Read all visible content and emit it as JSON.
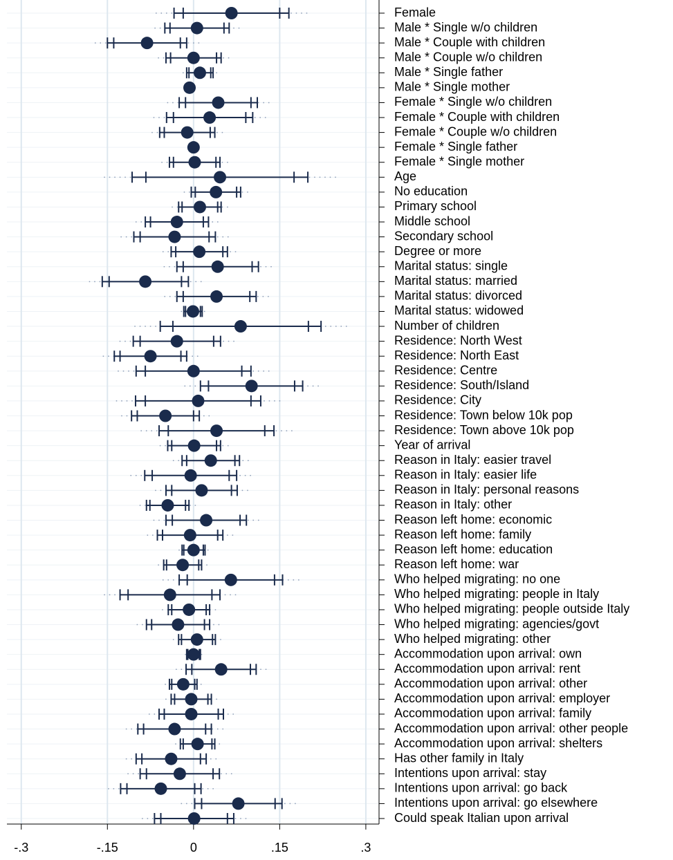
{
  "chart_data": {
    "type": "coefplot",
    "color": "#1a2b4c",
    "grid": true,
    "xlim": [
      -0.325,
      0.323
    ],
    "xticks": [
      {
        "value": -0.3,
        "label": "-.3"
      },
      {
        "value": -0.15,
        "label": "-.15"
      },
      0,
      {
        "value": 0.15,
        "label": ".15"
      },
      {
        "value": 0.3,
        "label": ".3"
      }
    ],
    "rows": [
      {
        "label": "Female",
        "estimate": 0.066,
        "ci90": [
          -0.018,
          0.15
        ],
        "ci95": [
          -0.034,
          0.166
        ],
        "ci99": [
          -0.066,
          0.198
        ]
      },
      {
        "label": "Male * Single w/o children",
        "estimate": 0.006,
        "ci90": [
          -0.041,
          0.053
        ],
        "ci95": [
          -0.05,
          0.062
        ],
        "ci99": [
          -0.068,
          0.08
        ]
      },
      {
        "label": "Male * Couple with children",
        "estimate": -0.081,
        "ci90": [
          -0.139,
          -0.023
        ],
        "ci95": [
          -0.15,
          -0.012
        ],
        "ci99": [
          -0.172,
          0.01
        ]
      },
      {
        "label": "Male * Couple w/o children",
        "estimate": 0,
        "ci90": [
          -0.04,
          0.04
        ],
        "ci95": [
          -0.048,
          0.048
        ],
        "ci99": [
          -0.062,
          0.062
        ]
      },
      {
        "label": "Male * Single father",
        "estimate": 0.011,
        "ci90": [
          -0.008,
          0.03
        ],
        "ci95": [
          -0.012,
          0.034
        ],
        "ci99": [
          -0.019,
          0.041
        ]
      },
      {
        "label": "Male * Single mother",
        "estimate": -0.007,
        "ci90": [
          -0.009,
          -0.005
        ],
        "ci95": [
          -0.01,
          -0.004
        ],
        "ci99": [
          -0.011,
          -0.003
        ]
      },
      {
        "label": "Female * Single w/o children",
        "estimate": 0.043,
        "ci90": [
          -0.014,
          0.1
        ],
        "ci95": [
          -0.025,
          0.111
        ],
        "ci99": [
          -0.046,
          0.132
        ]
      },
      {
        "label": "Female * Couple with children",
        "estimate": 0.028,
        "ci90": [
          -0.035,
          0.091
        ],
        "ci95": [
          -0.047,
          0.103
        ],
        "ci99": [
          -0.07,
          0.126
        ]
      },
      {
        "label": "Female * Couple w/o children",
        "estimate": -0.011,
        "ci90": [
          -0.051,
          0.029
        ],
        "ci95": [
          -0.059,
          0.037
        ],
        "ci99": [
          -0.073,
          0.051
        ]
      },
      {
        "label": "Female * Single father",
        "estimate": 0,
        "ci90": [
          -0.002,
          0.002
        ],
        "ci95": [
          -0.003,
          0.003
        ],
        "ci99": [
          -0.004,
          0.004
        ]
      },
      {
        "label": "Female * Single mother",
        "estimate": 0.002,
        "ci90": [
          -0.035,
          0.039
        ],
        "ci95": [
          -0.042,
          0.046
        ],
        "ci99": [
          -0.056,
          0.06
        ]
      },
      {
        "label": "Age",
        "estimate": 0.046,
        "ci90": [
          -0.083,
          0.175
        ],
        "ci95": [
          -0.107,
          0.199
        ],
        "ci99": [
          -0.156,
          0.248
        ]
      },
      {
        "label": "No education",
        "estimate": 0.039,
        "ci90": [
          0.003,
          0.075
        ],
        "ci95": [
          -0.004,
          0.082
        ],
        "ci99": [
          -0.017,
          0.095
        ]
      },
      {
        "label": "Primary school",
        "estimate": 0.011,
        "ci90": [
          -0.02,
          0.042
        ],
        "ci95": [
          -0.026,
          0.048
        ],
        "ci99": [
          -0.038,
          0.06
        ]
      },
      {
        "label": "Middle school",
        "estimate": -0.029,
        "ci90": [
          -0.075,
          0.017
        ],
        "ci95": [
          -0.084,
          0.026
        ],
        "ci99": [
          -0.101,
          0.043
        ]
      },
      {
        "label": "Secondary school",
        "estimate": -0.033,
        "ci90": [
          -0.093,
          0.027
        ],
        "ci95": [
          -0.104,
          0.038
        ],
        "ci99": [
          -0.127,
          0.061
        ]
      },
      {
        "label": "Degree or more",
        "estimate": 0.01,
        "ci90": [
          -0.031,
          0.051
        ],
        "ci95": [
          -0.039,
          0.059
        ],
        "ci99": [
          -0.054,
          0.074
        ]
      },
      {
        "label": "Marital status: single",
        "estimate": 0.042,
        "ci90": [
          -0.018,
          0.102
        ],
        "ci95": [
          -0.029,
          0.113
        ],
        "ci99": [
          -0.052,
          0.136
        ]
      },
      {
        "label": "Marital status: married",
        "estimate": -0.084,
        "ci90": [
          -0.147,
          -0.021
        ],
        "ci95": [
          -0.159,
          -0.009
        ],
        "ci99": [
          -0.182,
          0.014
        ]
      },
      {
        "label": "Marital status: divorced",
        "estimate": 0.04,
        "ci90": [
          -0.018,
          0.098
        ],
        "ci95": [
          -0.029,
          0.109
        ],
        "ci99": [
          -0.051,
          0.131
        ]
      },
      {
        "label": "Marital status: widowed",
        "estimate": -0.001,
        "ci90": [
          -0.014,
          0.012
        ],
        "ci95": [
          -0.017,
          0.015
        ],
        "ci99": [
          -0.022,
          0.02
        ]
      },
      {
        "label": "Number of children",
        "estimate": 0.082,
        "ci90": [
          -0.036,
          0.2
        ],
        "ci95": [
          -0.058,
          0.222
        ],
        "ci99": [
          -0.103,
          0.267
        ]
      },
      {
        "label": "Residence: North West",
        "estimate": -0.029,
        "ci90": [
          -0.093,
          0.035
        ],
        "ci95": [
          -0.105,
          0.047
        ],
        "ci99": [
          -0.129,
          0.071
        ]
      },
      {
        "label": "Residence: North East",
        "estimate": -0.075,
        "ci90": [
          -0.128,
          -0.022
        ],
        "ci95": [
          -0.138,
          -0.012
        ],
        "ci99": [
          -0.158,
          0.008
        ]
      },
      {
        "label": "Residence: Centre",
        "estimate": 0,
        "ci90": [
          -0.084,
          0.084
        ],
        "ci95": [
          -0.1,
          0.1
        ],
        "ci99": [
          -0.132,
          0.132
        ]
      },
      {
        "label": "Residence: South/Island",
        "estimate": 0.101,
        "ci90": [
          0.026,
          0.176
        ],
        "ci95": [
          0.012,
          0.19
        ],
        "ci99": [
          -0.016,
          0.218
        ]
      },
      {
        "label": "Residence: City",
        "estimate": 0.008,
        "ci90": [
          -0.084,
          0.1
        ],
        "ci95": [
          -0.101,
          0.117
        ],
        "ci99": [
          -0.135,
          0.151
        ]
      },
      {
        "label": "Residence: Town below 10k pop",
        "estimate": -0.049,
        "ci90": [
          -0.098,
          0.0
        ],
        "ci95": [
          -0.108,
          0.01
        ],
        "ci99": [
          -0.126,
          0.028
        ]
      },
      {
        "label": "Residence: Town above 10k pop",
        "estimate": 0.04,
        "ci90": [
          -0.044,
          0.124
        ],
        "ci95": [
          -0.06,
          0.14
        ],
        "ci99": [
          -0.092,
          0.172
        ]
      },
      {
        "label": "Year of arrival",
        "estimate": 0.001,
        "ci90": [
          -0.038,
          0.04
        ],
        "ci95": [
          -0.045,
          0.047
        ],
        "ci99": [
          -0.059,
          0.061
        ]
      },
      {
        "label": "Reason in Italy: easier travel",
        "estimate": 0.03,
        "ci90": [
          -0.012,
          0.072
        ],
        "ci95": [
          -0.02,
          0.08
        ],
        "ci99": [
          -0.036,
          0.096
        ]
      },
      {
        "label": "Reason in Italy: easier life",
        "estimate": -0.005,
        "ci90": [
          -0.072,
          0.062
        ],
        "ci95": [
          -0.085,
          0.075
        ],
        "ci99": [
          -0.11,
          0.1
        ]
      },
      {
        "label": "Reason in Italy: personal reasons",
        "estimate": 0.014,
        "ci90": [
          -0.038,
          0.066
        ],
        "ci95": [
          -0.048,
          0.076
        ],
        "ci99": [
          -0.067,
          0.095
        ]
      },
      {
        "label": "Reason in Italy: other",
        "estimate": -0.045,
        "ci90": [
          -0.076,
          -0.014
        ],
        "ci95": [
          -0.082,
          -0.008
        ],
        "ci99": [
          -0.094,
          0.004
        ]
      },
      {
        "label": "Reason left home: economic",
        "estimate": 0.022,
        "ci90": [
          -0.037,
          0.081
        ],
        "ci95": [
          -0.048,
          0.092
        ],
        "ci99": [
          -0.07,
          0.114
        ]
      },
      {
        "label": "Reason left home: family",
        "estimate": -0.006,
        "ci90": [
          -0.054,
          0.042
        ],
        "ci95": [
          -0.063,
          0.051
        ],
        "ci99": [
          -0.081,
          0.069
        ]
      },
      {
        "label": "Reason left home: education",
        "estimate": 0,
        "ci90": [
          -0.017,
          0.017
        ],
        "ci95": [
          -0.02,
          0.02
        ],
        "ci99": [
          -0.026,
          0.026
        ]
      },
      {
        "label": "Reason left home: war",
        "estimate": -0.019,
        "ci90": [
          -0.047,
          0.009
        ],
        "ci95": [
          -0.052,
          0.014
        ],
        "ci99": [
          -0.062,
          0.024
        ]
      },
      {
        "label": "Who helped migrating: no one",
        "estimate": 0.065,
        "ci90": [
          -0.011,
          0.141
        ],
        "ci95": [
          -0.025,
          0.155
        ],
        "ci99": [
          -0.054,
          0.184
        ]
      },
      {
        "label": "Who helped migrating: people in Italy",
        "estimate": -0.041,
        "ci90": [
          -0.114,
          0.032
        ],
        "ci95": [
          -0.128,
          0.046
        ],
        "ci99": [
          -0.156,
          0.074
        ]
      },
      {
        "label": "Who helped migrating: people outside Italy",
        "estimate": -0.008,
        "ci90": [
          -0.038,
          0.022
        ],
        "ci95": [
          -0.044,
          0.028
        ],
        "ci99": [
          -0.055,
          0.039
        ]
      },
      {
        "label": "Who helped migrating: agencies/govt",
        "estimate": -0.027,
        "ci90": [
          -0.073,
          0.019
        ],
        "ci95": [
          -0.082,
          0.028
        ],
        "ci99": [
          -0.099,
          0.045
        ]
      },
      {
        "label": "Who helped migrating: other",
        "estimate": 0.006,
        "ci90": [
          -0.021,
          0.033
        ],
        "ci95": [
          -0.026,
          0.038
        ],
        "ci99": [
          -0.036,
          0.048
        ]
      },
      {
        "label": "Accommodation upon arrival: own",
        "estimate": 0,
        "ci90": [
          -0.01,
          0.01
        ],
        "ci95": [
          -0.012,
          0.012
        ],
        "ci99": [
          -0.015,
          0.015
        ]
      },
      {
        "label": "Accommodation upon arrival: rent",
        "estimate": 0.048,
        "ci90": [
          -0.003,
          0.099
        ],
        "ci95": [
          -0.013,
          0.109
        ],
        "ci99": [
          -0.031,
          0.127
        ]
      },
      {
        "label": "Accommodation upon arrival: other",
        "estimate": -0.018,
        "ci90": [
          -0.038,
          0.002
        ],
        "ci95": [
          -0.042,
          0.006
        ],
        "ci99": [
          -0.05,
          0.014
        ]
      },
      {
        "label": "Accommodation upon arrival: employer",
        "estimate": -0.004,
        "ci90": [
          -0.033,
          0.025
        ],
        "ci95": [
          -0.039,
          0.031
        ],
        "ci99": [
          -0.049,
          0.041
        ]
      },
      {
        "label": "Accommodation upon arrival: family",
        "estimate": -0.004,
        "ci90": [
          -0.051,
          0.043
        ],
        "ci95": [
          -0.06,
          0.052
        ],
        "ci99": [
          -0.078,
          0.07
        ]
      },
      {
        "label": "Accommodation upon arrival: other people",
        "estimate": -0.033,
        "ci90": [
          -0.087,
          0.021
        ],
        "ci95": [
          -0.097,
          0.031
        ],
        "ci99": [
          -0.118,
          0.052
        ]
      },
      {
        "label": "Accommodation upon arrival: shelters",
        "estimate": 0.007,
        "ci90": [
          -0.018,
          0.032
        ],
        "ci95": [
          -0.023,
          0.037
        ],
        "ci99": [
          -0.032,
          0.046
        ]
      },
      {
        "label": "Has other family in Italy",
        "estimate": -0.039,
        "ci90": [
          -0.09,
          0.012
        ],
        "ci95": [
          -0.1,
          0.022
        ],
        "ci99": [
          -0.118,
          0.04
        ]
      },
      {
        "label": "Intentions upon arrival: stay",
        "estimate": -0.024,
        "ci90": [
          -0.082,
          0.034
        ],
        "ci95": [
          -0.093,
          0.045
        ],
        "ci99": [
          -0.115,
          0.067
        ]
      },
      {
        "label": "Intentions upon arrival: go back",
        "estimate": -0.057,
        "ci90": [
          -0.116,
          0.002
        ],
        "ci95": [
          -0.127,
          0.013
        ],
        "ci99": [
          -0.149,
          0.035
        ]
      },
      {
        "label": "Intentions upon arrival: go elsewhere",
        "estimate": 0.078,
        "ci90": [
          0.014,
          0.142
        ],
        "ci95": [
          0.002,
          0.154
        ],
        "ci99": [
          -0.022,
          0.178
        ]
      },
      {
        "label": "Could speak Italian upon arrival",
        "estimate": 0.001,
        "ci90": [
          -0.057,
          0.059
        ],
        "ci95": [
          -0.068,
          0.07
        ],
        "ci99": [
          -0.09,
          0.092
        ]
      }
    ]
  }
}
